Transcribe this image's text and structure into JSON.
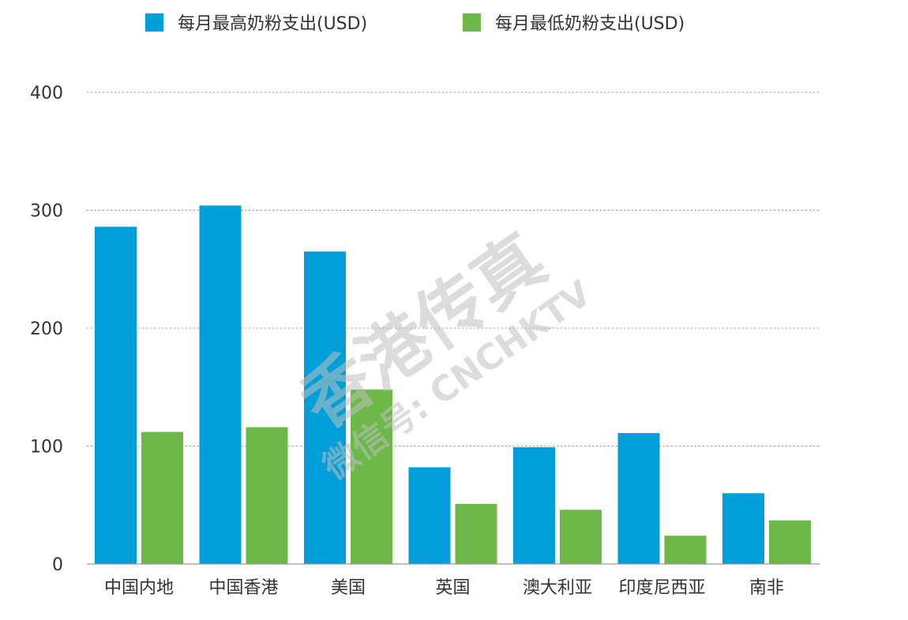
{
  "chart_data": {
    "type": "bar",
    "categories": [
      "中国内地",
      "中国香港",
      "美国",
      "英国",
      "澳大利亚",
      "印度尼西亚",
      "南非"
    ],
    "series": [
      {
        "name": "每月最高奶粉支出(USD)",
        "color": "#009fda",
        "values": [
          286,
          304,
          265,
          82,
          99,
          111,
          60
        ]
      },
      {
        "name": "每月最低奶粉支出(USD)",
        "color": "#6cb94a",
        "values": [
          112,
          116,
          148,
          51,
          46,
          24,
          37
        ]
      }
    ],
    "yticks": [
      0,
      100,
      200,
      300,
      400
    ],
    "ylim": [
      0,
      400
    ],
    "grid": true,
    "grid_style": "dotted",
    "legend_position": "top",
    "xlabel": "",
    "ylabel": "",
    "title": ""
  },
  "watermark": {
    "line1": "香港传真",
    "line2": "微信号: CNCHKTV"
  }
}
